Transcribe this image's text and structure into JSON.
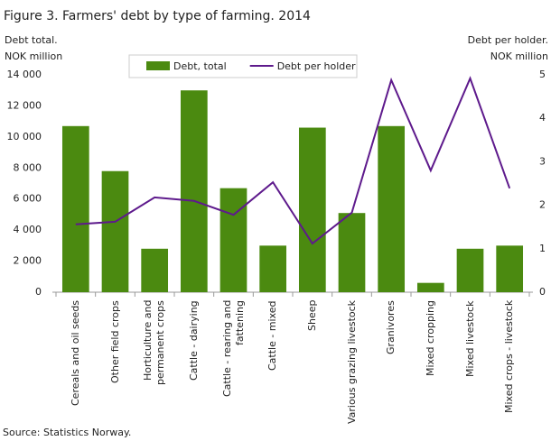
{
  "chart_data": {
    "type": "bar",
    "title": "Figure 3. Farmers' debt by type of farming. 2014",
    "y_label": [
      "Debt total.",
      "NOK million"
    ],
    "y2_label": [
      "Debt per holder.",
      "NOK million"
    ],
    "categories": [
      "Cereals and oil seeds",
      "Other field crops",
      "Horticulture and permanent crops",
      "Cattle - dairying",
      "Cattle - rearing and fattening",
      "Cattle - mixed",
      "Sheep",
      "Various grazing livestock",
      "Granivores",
      "Mixed cropping",
      "Mixed livestock",
      "Mixed crops - livestock"
    ],
    "series": [
      {
        "name": "Debt, total",
        "type": "bar",
        "color": "#4b8a10",
        "values": [
          10700,
          7800,
          2800,
          13000,
          6700,
          3000,
          10600,
          5100,
          10700,
          600,
          2800,
          3000
        ]
      },
      {
        "name": "Debt per holder",
        "type": "line",
        "axis": "y2",
        "color": "#5e1a8c",
        "values": [
          1.56,
          1.62,
          2.18,
          2.1,
          1.78,
          2.53,
          1.12,
          1.83,
          4.88,
          2.8,
          4.92,
          2.39
        ]
      }
    ],
    "ylim": [
      0,
      14000
    ],
    "yticks": [
      0,
      {
        "value": 2000,
        "label": "2 000"
      },
      {
        "value": 4000,
        "label": "4 000"
      },
      {
        "value": 6000,
        "label": "6 000"
      },
      {
        "value": 8000,
        "label": "8 000"
      },
      {
        "value": 10000,
        "label": "10 000"
      },
      {
        "value": 12000,
        "label": "12 000"
      },
      {
        "value": 14000,
        "label": "14 000"
      }
    ],
    "y2lim": [
      0,
      5
    ],
    "y2ticks": [
      0,
      1,
      2,
      3,
      4,
      5
    ],
    "legend": "top",
    "source": "Source: Statistics Norway."
  }
}
